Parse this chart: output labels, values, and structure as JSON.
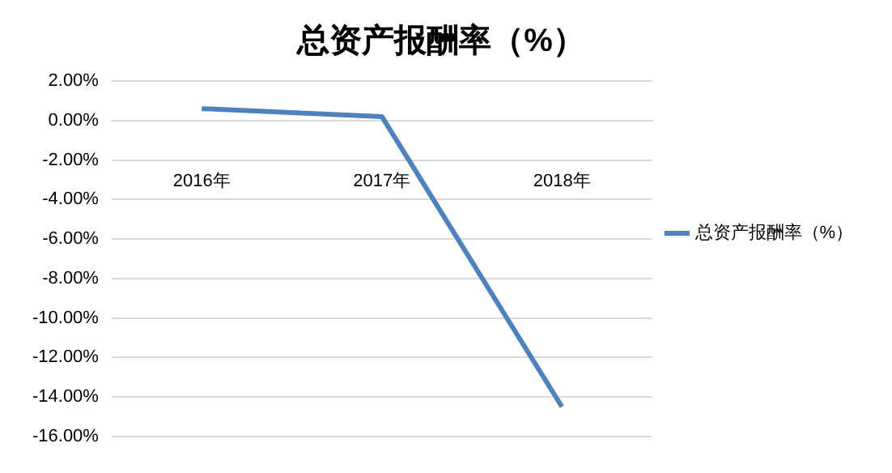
{
  "chart_data": {
    "type": "line",
    "title": "总资产报酬率（%）",
    "categories": [
      "2016年",
      "2017年",
      "2018年"
    ],
    "series": [
      {
        "name": "总资产报酬率（%）",
        "color": "#4f81bd",
        "values": [
          0.6,
          0.2,
          -14.5
        ]
      }
    ],
    "ylim": [
      -16,
      2
    ],
    "yticks": [
      {
        "value": 2,
        "label": "2.00%"
      },
      {
        "value": 0,
        "label": "0.00%"
      },
      {
        "value": -2,
        "label": "-2.00%"
      },
      {
        "value": -4,
        "label": "-4.00%"
      },
      {
        "value": -6,
        "label": "-6.00%"
      },
      {
        "value": -8,
        "label": "-8.00%"
      },
      {
        "value": -10,
        "label": "-10.00%"
      },
      {
        "value": -12,
        "label": "-12.00%"
      },
      {
        "value": -14,
        "label": "-14.00%"
      },
      {
        "value": -16,
        "label": "-16.00%"
      }
    ],
    "grid": "y",
    "legend": "right",
    "marker": "none",
    "line_style": "solid"
  }
}
